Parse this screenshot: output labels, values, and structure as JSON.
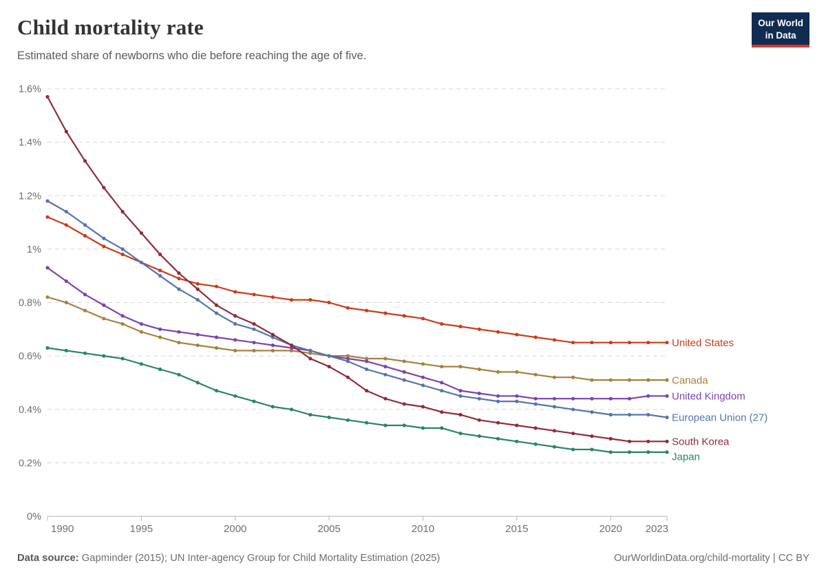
{
  "header": {
    "title": "Child mortality rate",
    "subtitle": "Estimated share of newborns who die before reaching the age of five.",
    "logo": {
      "line1": "Our World",
      "line2": "in Data",
      "bg_color": "#112c52",
      "accent_color": "#d4392c"
    }
  },
  "footer": {
    "source_label": "Data source:",
    "source_text": "Gapminder (2015); UN Inter-agency Group for Child Mortality Estimation (2025)",
    "link_text": "OurWorldinData.org/child-mortality",
    "divider": "|",
    "license_text": "CC BY"
  },
  "chart_data": {
    "type": "line",
    "title": "Child mortality rate",
    "subtitle": "Estimated share of newborns who die before reaching the age of five.",
    "unit": "%",
    "xlabel": "",
    "ylabel": "",
    "ylim": [
      0,
      1.6
    ],
    "grid": "horizontal-dashed",
    "legend_position": "line-end-labels",
    "xticks": [
      1990,
      1995,
      2000,
      2005,
      2010,
      2015,
      2020,
      2023
    ],
    "yticks": [
      {
        "value": 0,
        "label": "0%"
      },
      {
        "value": 0.2,
        "label": "0.2%"
      },
      {
        "value": 0.4,
        "label": "0.4%"
      },
      {
        "value": 0.6,
        "label": "0.6%"
      },
      {
        "value": 0.8,
        "label": "0.8%"
      },
      {
        "value": 1,
        "label": "1%"
      },
      {
        "value": 1.2,
        "label": "1.2%"
      },
      {
        "value": 1.4,
        "label": "1.4%"
      },
      {
        "value": 1.6,
        "label": "1.6%"
      }
    ],
    "x": [
      1990,
      1991,
      1992,
      1993,
      1994,
      1995,
      1996,
      1997,
      1998,
      1999,
      2000,
      2001,
      2002,
      2003,
      2004,
      2005,
      2006,
      2007,
      2008,
      2009,
      2010,
      2011,
      2012,
      2013,
      2014,
      2015,
      2016,
      2017,
      2018,
      2019,
      2020,
      2021,
      2022,
      2023
    ],
    "series": [
      {
        "name": "United States",
        "color": "#cb3b18",
        "values": [
          1.12,
          1.09,
          1.05,
          1.01,
          0.98,
          0.95,
          0.92,
          0.89,
          0.87,
          0.86,
          0.84,
          0.83,
          0.82,
          0.81,
          0.81,
          0.8,
          0.78,
          0.77,
          0.76,
          0.75,
          0.74,
          0.72,
          0.71,
          0.7,
          0.69,
          0.68,
          0.67,
          0.66,
          0.65,
          0.65,
          0.65,
          0.65,
          0.65,
          0.65
        ]
      },
      {
        "name": "Canada",
        "color": "#a8803e",
        "values": [
          0.82,
          0.8,
          0.77,
          0.74,
          0.72,
          0.69,
          0.67,
          0.65,
          0.64,
          0.63,
          0.62,
          0.62,
          0.62,
          0.62,
          0.61,
          0.6,
          0.6,
          0.59,
          0.59,
          0.58,
          0.57,
          0.56,
          0.56,
          0.55,
          0.54,
          0.54,
          0.53,
          0.52,
          0.52,
          0.51,
          0.51,
          0.51,
          0.51,
          0.51
        ]
      },
      {
        "name": "United Kingdom",
        "color": "#7a44ad",
        "values": [
          0.93,
          0.88,
          0.83,
          0.79,
          0.75,
          0.72,
          0.7,
          0.69,
          0.68,
          0.67,
          0.66,
          0.65,
          0.64,
          0.63,
          0.62,
          0.6,
          0.59,
          0.58,
          0.56,
          0.54,
          0.52,
          0.5,
          0.47,
          0.46,
          0.45,
          0.45,
          0.44,
          0.44,
          0.44,
          0.44,
          0.44,
          0.44,
          0.45,
          0.45
        ]
      },
      {
        "name": "European Union (27)",
        "color": "#5674ae",
        "values": [
          1.18,
          1.14,
          1.09,
          1.04,
          1.0,
          0.95,
          0.9,
          0.85,
          0.81,
          0.76,
          0.72,
          0.7,
          0.67,
          0.64,
          0.62,
          0.6,
          0.58,
          0.55,
          0.53,
          0.51,
          0.49,
          0.47,
          0.45,
          0.44,
          0.43,
          0.43,
          0.42,
          0.41,
          0.4,
          0.39,
          0.38,
          0.38,
          0.38,
          0.37
        ]
      },
      {
        "name": "South Korea",
        "color": "#8e2c3b",
        "values": [
          1.57,
          1.44,
          1.33,
          1.23,
          1.14,
          1.06,
          0.98,
          0.91,
          0.85,
          0.79,
          0.75,
          0.72,
          0.68,
          0.64,
          0.59,
          0.56,
          0.52,
          0.47,
          0.44,
          0.42,
          0.41,
          0.39,
          0.38,
          0.36,
          0.35,
          0.34,
          0.33,
          0.32,
          0.31,
          0.3,
          0.29,
          0.28,
          0.28,
          0.28
        ]
      },
      {
        "name": "Japan",
        "color": "#2c8465",
        "values": [
          0.63,
          0.62,
          0.61,
          0.6,
          0.59,
          0.57,
          0.55,
          0.53,
          0.5,
          0.47,
          0.45,
          0.43,
          0.41,
          0.4,
          0.38,
          0.37,
          0.36,
          0.35,
          0.34,
          0.34,
          0.33,
          0.33,
          0.31,
          0.3,
          0.29,
          0.28,
          0.27,
          0.26,
          0.25,
          0.25,
          0.24,
          0.24,
          0.24,
          0.24
        ]
      }
    ]
  }
}
